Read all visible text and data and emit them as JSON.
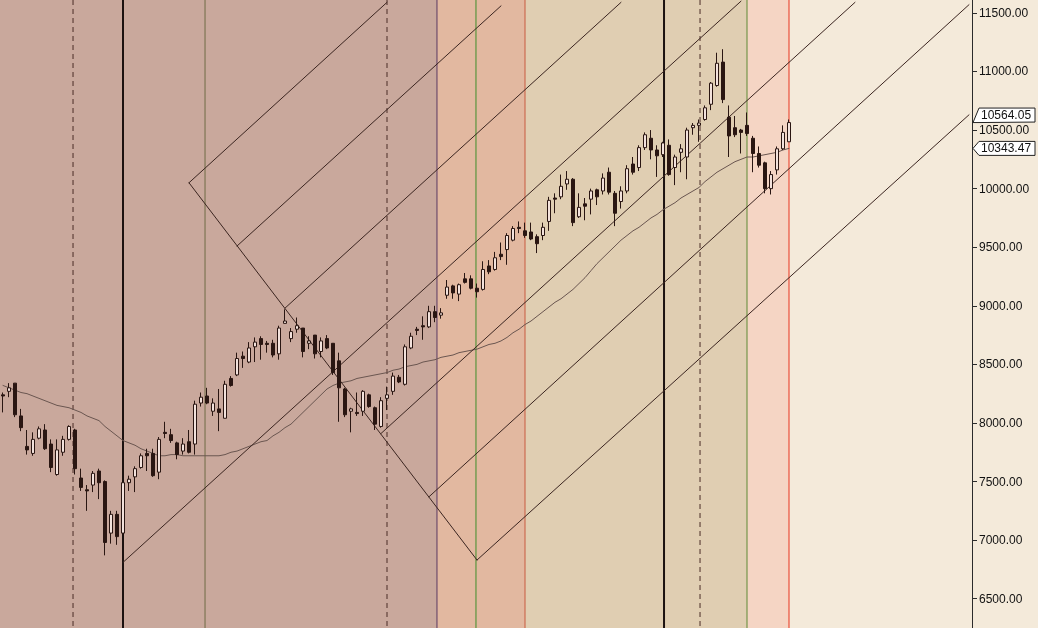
{
  "chart_data": {
    "type": "candlestick",
    "categories": [
      null,
      null,
      null,
      null,
      null,
      null,
      null,
      null,
      null,
      null,
      null,
      null,
      null,
      null,
      null,
      null,
      null,
      null,
      null,
      null,
      null,
      null,
      null,
      null,
      null,
      null,
      null,
      null,
      null,
      null,
      null,
      null,
      null,
      null,
      null,
      null,
      null,
      null,
      null,
      null,
      null,
      null,
      null,
      null,
      null,
      null,
      null,
      null,
      null,
      null,
      null,
      null,
      null,
      null,
      null,
      null,
      null,
      null,
      null,
      null,
      null,
      null,
      null,
      null,
      null,
      null,
      null,
      null,
      null,
      null,
      null,
      null,
      null,
      null,
      null,
      null,
      null,
      null,
      null,
      null,
      null,
      null,
      null,
      null,
      null,
      null,
      null,
      null,
      null,
      null,
      null,
      null,
      null,
      null,
      null,
      null,
      null,
      null,
      null,
      null,
      null,
      null,
      null,
      null,
      null,
      null,
      null,
      null,
      null,
      null,
      null,
      null,
      null,
      null,
      null,
      null,
      null,
      null,
      null,
      null,
      null,
      null,
      null,
      null,
      null,
      null,
      null,
      null,
      null,
      null,
      null,
      null,
      null,
      null,
      null,
      null,
      null,
      null,
      null,
      null,
      null,
      null,
      null,
      null,
      null,
      null,
      null,
      null,
      null,
      null,
      null,
      null,
      null,
      null,
      null,
      null,
      null,
      null,
      null,
      null,
      null,
      null
    ],
    "ohlc": [
      [
        8240,
        8260,
        8090,
        8230
      ],
      [
        8270,
        8340,
        8220,
        8300
      ],
      [
        8340,
        8340,
        8050,
        8070
      ],
      [
        8060,
        8120,
        7930,
        7960
      ],
      [
        7800,
        7940,
        7730,
        7770
      ],
      [
        7740,
        7920,
        7720,
        7860
      ],
      [
        7870,
        7970,
        7860,
        7950
      ],
      [
        7940,
        7990,
        7770,
        7780
      ],
      [
        7820,
        7860,
        7580,
        7620
      ],
      [
        7560,
        7860,
        7550,
        7770
      ],
      [
        7750,
        7890,
        7720,
        7860
      ],
      [
        7860,
        7980,
        7850,
        7970
      ],
      [
        7940,
        7950,
        7560,
        7610
      ],
      [
        7530,
        7610,
        7420,
        7450
      ],
      [
        7430,
        7470,
        7250,
        7420
      ],
      [
        7470,
        7590,
        7410,
        7570
      ],
      [
        7590,
        7610,
        7350,
        7490
      ],
      [
        7500,
        7510,
        6870,
        6980
      ],
      [
        7060,
        7250,
        6970,
        7220
      ],
      [
        7220,
        7250,
        6960,
        7030
      ],
      [
        7060,
        7490,
        7050,
        7490
      ],
      [
        7490,
        7550,
        7420,
        7520
      ],
      [
        7540,
        7630,
        7410,
        7610
      ],
      [
        7620,
        7740,
        7610,
        7720
      ],
      [
        7740,
        7780,
        7590,
        7720
      ],
      [
        7740,
        7780,
        7540,
        7550
      ],
      [
        7580,
        7880,
        7520,
        7860
      ],
      [
        7920,
        8010,
        7870,
        7910
      ],
      [
        7900,
        7950,
        7830,
        7850
      ],
      [
        7830,
        7840,
        7690,
        7730
      ],
      [
        7760,
        7870,
        7730,
        7820
      ],
      [
        7840,
        7940,
        7740,
        7750
      ],
      [
        7820,
        8190,
        7730,
        8160
      ],
      [
        8170,
        8260,
        8140,
        8220
      ],
      [
        8230,
        8300,
        8160,
        8170
      ],
      [
        8100,
        8210,
        8060,
        8170
      ],
      [
        8120,
        8290,
        7930,
        8090
      ],
      [
        8040,
        8360,
        8040,
        8330
      ],
      [
        8380,
        8400,
        8310,
        8320
      ],
      [
        8410,
        8600,
        8400,
        8550
      ],
      [
        8570,
        8610,
        8470,
        8550
      ],
      [
        8520,
        8690,
        8510,
        8640
      ],
      [
        8650,
        8730,
        8520,
        8690
      ],
      [
        8720,
        8740,
        8540,
        8670
      ],
      [
        8680,
        8700,
        8600,
        8670
      ],
      [
        8680,
        8710,
        8560,
        8580
      ],
      [
        8590,
        8830,
        8540,
        8810
      ],
      [
        8850,
        8970,
        8850,
        8870
      ],
      [
        8720,
        8810,
        8690,
        8780
      ],
      [
        8800,
        8900,
        8770,
        8830
      ],
      [
        8810,
        8810,
        8560,
        8610
      ],
      [
        8680,
        8740,
        8630,
        8700
      ],
      [
        8750,
        8750,
        8550,
        8590
      ],
      [
        8610,
        8730,
        8560,
        8700
      ],
      [
        8720,
        8750,
        8630,
        8640
      ],
      [
        8680,
        8680,
        8410,
        8430
      ],
      [
        8530,
        8600,
        8010,
        8300
      ],
      [
        8290,
        8300,
        8050,
        8070
      ],
      [
        8100,
        8130,
        7920,
        8120
      ],
      [
        8090,
        8260,
        8060,
        8080
      ],
      [
        8100,
        8280,
        8060,
        8270
      ],
      [
        8240,
        8250,
        8130,
        8140
      ],
      [
        8130,
        8140,
        7940,
        7990
      ],
      [
        7970,
        8220,
        7960,
        8190
      ],
      [
        8210,
        8310,
        8110,
        8240
      ],
      [
        8270,
        8430,
        8240,
        8400
      ],
      [
        8390,
        8410,
        8340,
        8350
      ],
      [
        8330,
        8670,
        8320,
        8650
      ],
      [
        8640,
        8770,
        8630,
        8740
      ],
      [
        8800,
        8820,
        8750,
        8790
      ],
      [
        8830,
        8910,
        8710,
        8820
      ],
      [
        8820,
        9000,
        8810,
        8950
      ],
      [
        8950,
        9000,
        8860,
        8900
      ],
      [
        8920,
        8980,
        8890,
        8940
      ],
      [
        9090,
        9220,
        9060,
        9160
      ],
      [
        9170,
        9180,
        9060,
        9110
      ],
      [
        9100,
        9190,
        9040,
        9180
      ],
      [
        9230,
        9280,
        9190,
        9200
      ],
      [
        9230,
        9260,
        9140,
        9150
      ],
      [
        9150,
        9190,
        9070,
        9120
      ],
      [
        9140,
        9380,
        9130,
        9310
      ],
      [
        9340,
        9390,
        9270,
        9290
      ],
      [
        9310,
        9460,
        9300,
        9410
      ],
      [
        9440,
        9540,
        9390,
        9420
      ],
      [
        9480,
        9620,
        9350,
        9600
      ],
      [
        9560,
        9680,
        9550,
        9660
      ],
      [
        9670,
        9720,
        9620,
        9660
      ],
      [
        9640,
        9710,
        9580,
        9600
      ],
      [
        9630,
        9710,
        9560,
        9570
      ],
      [
        9590,
        9610,
        9450,
        9530
      ],
      [
        9600,
        9710,
        9560,
        9670
      ],
      [
        9720,
        9930,
        9640,
        9900
      ],
      [
        9920,
        9960,
        9790,
        9910
      ],
      [
        9930,
        10120,
        9910,
        10020
      ],
      [
        10040,
        10150,
        9990,
        10080
      ],
      [
        10080,
        10090,
        9680,
        9710
      ],
      [
        9760,
        9960,
        9750,
        9840
      ],
      [
        9870,
        9920,
        9730,
        9850
      ],
      [
        9910,
        10000,
        9780,
        9980
      ],
      [
        9990,
        10000,
        9860,
        9930
      ],
      [
        9980,
        10130,
        9950,
        10090
      ],
      [
        10140,
        10180,
        9950,
        9970
      ],
      [
        9960,
        9980,
        9680,
        9790
      ],
      [
        9890,
        10020,
        9830,
        9980
      ],
      [
        9980,
        10200,
        9960,
        10170
      ],
      [
        10210,
        10270,
        10120,
        10140
      ],
      [
        10180,
        10370,
        10150,
        10350
      ],
      [
        10350,
        10480,
        10330,
        10460
      ],
      [
        10430,
        10500,
        10250,
        10330
      ],
      [
        10330,
        10370,
        10100,
        10280
      ],
      [
        10290,
        10400,
        10270,
        10390
      ],
      [
        10370,
        10420,
        10110,
        10120
      ],
      [
        10180,
        10290,
        10030,
        10270
      ],
      [
        10310,
        10380,
        10140,
        10340
      ],
      [
        10270,
        10520,
        10080,
        10500
      ],
      [
        10520,
        10560,
        10460,
        10540
      ],
      [
        10540,
        10590,
        10400,
        10560
      ],
      [
        10590,
        10710,
        10580,
        10690
      ],
      [
        10720,
        10910,
        10670,
        10900
      ],
      [
        10880,
        11160,
        10870,
        11070
      ],
      [
        11080,
        11190,
        10730,
        10760
      ],
      [
        10610,
        10710,
        10270,
        10450
      ],
      [
        10520,
        10620,
        10440,
        10460
      ],
      [
        10500,
        10510,
        10300,
        10480
      ],
      [
        10540,
        10650,
        10450,
        10470
      ],
      [
        10430,
        10450,
        10140,
        10300
      ],
      [
        10300,
        10360,
        10180,
        10200
      ],
      [
        10220,
        10230,
        9960,
        10000
      ],
      [
        10000,
        10150,
        9950,
        10120
      ],
      [
        10160,
        10360,
        10120,
        10340
      ],
      [
        10340,
        10540,
        10330,
        10480
      ],
      [
        10400,
        10590,
        10400,
        10564.05
      ],
      null,
      null,
      null,
      null,
      null,
      null,
      null,
      null,
      null,
      null,
      null,
      null,
      null,
      null,
      null,
      null,
      null,
      null,
      null,
      null,
      null,
      null,
      null,
      null,
      null,
      null,
      null,
      null,
      null,
      null
    ],
    "color": "#2a1612",
    "series": [
      {
        "type": "line",
        "color": "#6a5650",
        "values": [
          8320,
          8300,
          8280,
          8260,
          8250,
          8230,
          8210,
          8190,
          8170,
          8150,
          8140,
          8130,
          8110,
          8090,
          8060,
          8040,
          8020,
          7970,
          7930,
          7890,
          7850,
          7830,
          7810,
          7780,
          7760,
          7740,
          7720,
          7720,
          7730,
          7730,
          7720,
          7720,
          7720,
          7720,
          7720,
          7720,
          7720,
          7730,
          7750,
          7760,
          7780,
          7800,
          7820,
          7840,
          7850,
          7890,
          7920,
          7960,
          7990,
          8040,
          8090,
          8140,
          8190,
          8240,
          8290,
          8320,
          8340,
          8350,
          8360,
          8380,
          8390,
          8400,
          8410,
          8420,
          8430,
          8450,
          8460,
          8480,
          8490,
          8500,
          8520,
          8530,
          8540,
          8560,
          8570,
          8580,
          8600,
          8610,
          8620,
          8630,
          8650,
          8670,
          8680,
          8700,
          8730,
          8770,
          8800,
          8840,
          8870,
          8910,
          8950,
          8990,
          9030,
          9060,
          9100,
          9140,
          9190,
          9240,
          9300,
          9360,
          9410,
          9460,
          9510,
          9560,
          9600,
          9640,
          9670,
          9710,
          9750,
          9780,
          9820,
          9850,
          9880,
          9920,
          9950,
          9980,
          10010,
          10060,
          10100,
          10140,
          10170,
          10200,
          10230,
          10250,
          10270,
          10270,
          10280,
          10290,
          10300,
          10310,
          10330,
          10343.47,
          null,
          null,
          null,
          null,
          null,
          null,
          null,
          null,
          null,
          null,
          null,
          null,
          null,
          null,
          null,
          null,
          null,
          null,
          null,
          null,
          null,
          null,
          null,
          null,
          null,
          null,
          null,
          null,
          null,
          null
        ]
      },
      {
        "type": "line",
        "color": "#3b2520",
        "values": [
          null,
          null,
          null,
          null,
          null,
          null,
          null,
          null,
          null,
          null,
          null,
          null,
          null,
          null,
          null,
          null,
          null,
          null,
          null,
          null,
          null,
          null,
          null,
          null,
          null,
          null,
          null,
          null,
          null,
          null,
          null,
          10050,
          null,
          null,
          null,
          null,
          null,
          null,
          null,
          null,
          null,
          null,
          null,
          null,
          null,
          null,
          null,
          null,
          null,
          null,
          null,
          null,
          null,
          null,
          null,
          null,
          null,
          null,
          null,
          null,
          null,
          null,
          null,
          null,
          null,
          null,
          null,
          null,
          null,
          null,
          null,
          null,
          null,
          null,
          null,
          null,
          null,
          null,
          null,
          6830,
          null,
          null,
          null,
          null,
          null,
          null,
          null,
          null,
          null,
          null,
          null,
          null,
          null,
          null,
          null,
          null,
          null,
          null,
          null,
          null,
          null,
          null,
          null,
          null,
          null,
          null,
          null,
          null,
          null,
          null,
          null,
          null,
          null,
          null,
          null,
          null,
          null,
          null,
          null,
          null,
          null,
          null,
          null,
          null,
          null,
          null,
          null,
          null,
          null,
          null,
          null,
          null,
          null,
          null,
          null,
          null,
          null,
          null,
          null,
          null,
          null,
          null,
          null,
          null,
          null,
          null,
          null,
          null,
          null,
          null,
          null,
          null,
          null,
          null,
          null,
          null,
          null,
          null,
          null,
          null,
          null,
          null
        ]
      },
      {
        "type": "line",
        "color": "#3b2520",
        "values": [
          null,
          null,
          null,
          null,
          null,
          null,
          null,
          null,
          null,
          null,
          null,
          null,
          null,
          null,
          null,
          null,
          null,
          null,
          null,
          null,
          6810,
          null,
          null,
          null,
          null,
          null,
          null,
          null,
          null,
          null,
          null,
          null,
          null,
          null,
          null,
          null,
          null,
          null,
          null,
          null,
          null,
          null,
          null,
          null,
          null,
          null,
          null,
          null,
          null,
          null,
          null,
          null,
          null,
          null,
          null,
          null,
          null,
          null,
          null,
          null,
          null,
          null,
          null,
          null,
          null,
          null,
          null,
          null,
          null,
          null,
          null,
          null,
          null,
          null,
          null,
          null,
          null,
          null,
          null,
          null,
          null,
          null,
          null,
          null,
          null,
          null,
          null,
          null,
          null,
          null,
          null,
          null,
          null,
          null,
          null,
          null,
          null,
          null,
          null,
          null,
          null,
          null,
          null,
          null,
          null,
          null,
          null,
          null,
          null,
          null,
          null,
          null,
          null,
          null,
          null,
          null,
          null,
          null,
          null,
          null,
          null,
          null,
          null,
          11600,
          null,
          null,
          null,
          null,
          null,
          null,
          null,
          null,
          null,
          null,
          null,
          null,
          null,
          null,
          null,
          null,
          null,
          null,
          null,
          null,
          null,
          null,
          null,
          null,
          null,
          null,
          null,
          null,
          null,
          null,
          null,
          null,
          null,
          null,
          null,
          null,
          null,
          null
        ]
      },
      {
        "type": "line",
        "color": "#3b2520",
        "values": [
          null,
          null,
          null,
          null,
          null,
          null,
          null,
          null,
          null,
          null,
          null,
          null,
          null,
          null,
          null,
          null,
          null,
          null,
          null,
          null,
          null,
          null,
          null,
          null,
          null,
          null,
          null,
          null,
          null,
          null,
          null,
          10050,
          null,
          null,
          null,
          null,
          null,
          null,
          null,
          null,
          null,
          null,
          null,
          null,
          null,
          null,
          null,
          null,
          null,
          null,
          null,
          null,
          null,
          null,
          null,
          null,
          null,
          null,
          null,
          null,
          null,
          null,
          null,
          null,
          11590,
          null,
          null,
          null,
          null,
          null,
          null,
          null,
          null,
          null,
          null,
          null,
          null,
          null,
          null,
          null,
          null,
          null,
          null,
          null,
          null,
          null,
          null,
          null,
          null,
          null,
          null,
          null,
          null,
          null,
          null,
          null,
          null,
          null,
          null,
          null,
          null,
          null,
          null,
          null,
          null,
          null,
          null,
          null,
          null,
          null,
          null,
          null,
          null,
          null,
          null,
          null,
          null,
          null,
          null,
          null,
          null,
          null,
          null,
          null,
          null,
          null,
          null,
          null,
          null,
          null,
          null,
          null,
          null,
          null,
          null,
          null,
          null,
          null,
          null,
          null,
          null,
          null,
          null,
          null,
          null,
          null,
          null,
          null,
          null,
          null,
          null,
          null,
          null,
          null,
          null,
          null,
          null,
          null,
          null,
          null,
          null,
          null
        ]
      },
      {
        "type": "line",
        "color": "#3b2520",
        "values": [
          null,
          null,
          null,
          null,
          null,
          null,
          null,
          null,
          null,
          null,
          null,
          null,
          null,
          null,
          null,
          null,
          null,
          null,
          null,
          null,
          null,
          null,
          null,
          null,
          null,
          null,
          null,
          null,
          null,
          null,
          null,
          null,
          null,
          null,
          null,
          null,
          null,
          null,
          null,
          9510,
          null,
          null,
          null,
          null,
          null,
          null,
          null,
          null,
          null,
          null,
          null,
          null,
          null,
          null,
          null,
          null,
          null,
          null,
          null,
          null,
          null,
          null,
          null,
          null,
          null,
          null,
          null,
          null,
          null,
          null,
          null,
          null,
          null,
          null,
          null,
          null,
          null,
          null,
          null,
          null,
          null,
          null,
          null,
          11560,
          null,
          null,
          null,
          null,
          null,
          null,
          null,
          null,
          null,
          null,
          null,
          null,
          null,
          null,
          null,
          null,
          null,
          null,
          null,
          null,
          null,
          null,
          null,
          null,
          null,
          null,
          null,
          null,
          null,
          null,
          null,
          null,
          null,
          null,
          null,
          null,
          null,
          null,
          null,
          null,
          null,
          null,
          null,
          null,
          null,
          null,
          null,
          null,
          null,
          null,
          null,
          null,
          null,
          null,
          null,
          null,
          null,
          null,
          null,
          null,
          null,
          null,
          null,
          null,
          null,
          null,
          null,
          null,
          null,
          null,
          null,
          null,
          null,
          null,
          null,
          null,
          null,
          null
        ]
      },
      {
        "type": "line",
        "color": "#3b2520",
        "values": [
          null,
          null,
          null,
          null,
          null,
          null,
          null,
          null,
          null,
          null,
          null,
          null,
          null,
          null,
          null,
          null,
          null,
          null,
          null,
          null,
          null,
          null,
          null,
          null,
          null,
          null,
          null,
          null,
          null,
          null,
          null,
          null,
          null,
          null,
          null,
          null,
          null,
          null,
          null,
          null,
          null,
          null,
          null,
          null,
          null,
          null,
          null,
          8980,
          null,
          null,
          null,
          null,
          null,
          null,
          null,
          null,
          null,
          null,
          null,
          null,
          null,
          null,
          null,
          null,
          null,
          null,
          null,
          null,
          null,
          null,
          null,
          null,
          null,
          null,
          null,
          null,
          null,
          null,
          null,
          null,
          null,
          null,
          null,
          null,
          null,
          null,
          null,
          null,
          null,
          null,
          null,
          null,
          null,
          null,
          null,
          null,
          null,
          null,
          null,
          null,
          null,
          null,
          null,
          11590,
          null,
          null,
          null,
          null,
          null,
          null,
          null,
          null,
          null,
          null,
          null,
          null,
          null,
          null,
          null,
          null,
          null,
          null,
          null,
          null,
          null,
          null,
          null,
          null,
          null,
          null,
          null,
          null,
          null,
          null,
          null,
          null,
          null,
          null,
          null,
          null,
          null,
          null,
          null,
          null,
          null,
          null,
          null,
          null,
          null,
          null,
          null,
          null,
          null,
          null,
          null,
          null,
          null,
          null,
          null,
          null,
          null,
          null
        ]
      },
      {
        "type": "line",
        "color": "#3b2520",
        "values": [
          null,
          null,
          null,
          null,
          null,
          null,
          null,
          null,
          null,
          null,
          null,
          null,
          null,
          null,
          null,
          null,
          null,
          null,
          null,
          null,
          null,
          null,
          null,
          null,
          null,
          null,
          null,
          null,
          null,
          null,
          null,
          null,
          null,
          null,
          null,
          null,
          null,
          null,
          null,
          null,
          null,
          null,
          null,
          null,
          null,
          null,
          null,
          null,
          null,
          null,
          null,
          null,
          null,
          null,
          null,
          null,
          null,
          null,
          null,
          null,
          null,
          null,
          null,
          7910,
          null,
          null,
          null,
          null,
          null,
          null,
          null,
          null,
          null,
          null,
          null,
          null,
          null,
          null,
          null,
          null,
          null,
          null,
          null,
          null,
          null,
          null,
          null,
          null,
          null,
          null,
          null,
          null,
          null,
          null,
          null,
          null,
          null,
          null,
          null,
          null,
          null,
          null,
          null,
          null,
          null,
          null,
          null,
          null,
          null,
          null,
          null,
          null,
          null,
          null,
          null,
          null,
          null,
          null,
          null,
          null,
          null,
          null,
          null,
          null,
          null,
          null,
          null,
          null,
          null,
          null,
          null,
          null,
          null,
          null,
          null,
          null,
          null,
          null,
          null,
          null,
          null,
          null,
          11590,
          null,
          null,
          null,
          null,
          null,
          null,
          null,
          null,
          null,
          null,
          null,
          null,
          null,
          null,
          null,
          null,
          null,
          null,
          null
        ]
      },
      {
        "type": "line",
        "color": "#3b2520",
        "values": [
          null,
          null,
          null,
          null,
          null,
          null,
          null,
          null,
          null,
          null,
          null,
          null,
          null,
          null,
          null,
          null,
          null,
          null,
          null,
          null,
          null,
          null,
          null,
          null,
          null,
          null,
          null,
          null,
          null,
          null,
          null,
          null,
          null,
          null,
          null,
          null,
          null,
          null,
          null,
          null,
          null,
          null,
          null,
          null,
          null,
          null,
          null,
          null,
          null,
          null,
          null,
          null,
          null,
          null,
          null,
          null,
          null,
          null,
          null,
          null,
          null,
          null,
          null,
          null,
          null,
          null,
          null,
          null,
          null,
          null,
          null,
          7370,
          null,
          null,
          null,
          null,
          null,
          null,
          null,
          null,
          null,
          null,
          null,
          null,
          null,
          null,
          null,
          null,
          null,
          null,
          null,
          null,
          null,
          null,
          null,
          null,
          null,
          null,
          null,
          null,
          null,
          null,
          null,
          null,
          null,
          null,
          null,
          null,
          null,
          null,
          null,
          null,
          null,
          null,
          null,
          null,
          null,
          null,
          null,
          null,
          null,
          null,
          null,
          null,
          null,
          null,
          null,
          null,
          null,
          null,
          null,
          null,
          null,
          null,
          null,
          null,
          null,
          null,
          null,
          null,
          null,
          null,
          null,
          null,
          null,
          null,
          null,
          null,
          null,
          null,
          null,
          null,
          null,
          null,
          null,
          null,
          null,
          null,
          null,
          null,
          null,
          11570
        ]
      },
      {
        "type": "line",
        "color": "#3b2520",
        "values": [
          null,
          null,
          null,
          null,
          null,
          null,
          null,
          null,
          null,
          null,
          null,
          null,
          null,
          null,
          null,
          null,
          null,
          null,
          null,
          null,
          null,
          null,
          null,
          null,
          null,
          null,
          null,
          null,
          null,
          null,
          null,
          null,
          null,
          null,
          null,
          null,
          null,
          null,
          null,
          null,
          null,
          null,
          null,
          null,
          null,
          null,
          null,
          null,
          null,
          null,
          null,
          null,
          null,
          null,
          null,
          null,
          null,
          null,
          null,
          null,
          null,
          null,
          null,
          null,
          null,
          null,
          null,
          null,
          null,
          null,
          null,
          null,
          null,
          null,
          null,
          null,
          null,
          null,
          null,
          6830,
          null,
          null,
          null,
          null,
          null,
          null,
          null,
          null,
          null,
          null,
          null,
          null,
          null,
          null,
          null,
          null,
          null,
          null,
          null,
          null,
          null,
          null,
          null,
          null,
          null,
          null,
          null,
          null,
          null,
          null,
          null,
          null,
          null,
          null,
          null,
          null,
          null,
          null,
          null,
          null,
          null,
          null,
          null,
          null,
          null,
          null,
          null,
          null,
          null,
          null,
          null,
          null,
          null,
          null,
          null,
          null,
          null,
          null,
          null,
          null,
          null,
          null,
          null,
          null,
          null,
          null,
          null,
          null,
          null,
          null,
          null,
          null,
          null,
          null,
          null,
          null,
          null,
          null,
          null,
          null,
          null,
          10630
        ]
      }
    ],
    "ylim": [
      6250,
      11610
    ],
    "yticks": [
      {
        "value": 6500,
        "label": "6500.00"
      },
      {
        "value": 7000,
        "label": "7000.00"
      },
      {
        "value": 7500,
        "label": "7500.00"
      },
      {
        "value": 8000,
        "label": "8000.00"
      },
      {
        "value": 8500,
        "label": "8500.00"
      },
      {
        "value": 9000,
        "label": "9000.00"
      },
      {
        "value": 9500,
        "label": "9500.00"
      },
      {
        "value": 10000,
        "label": "10000.00"
      },
      {
        "value": 10500,
        "label": "10500.00"
      },
      {
        "value": 11000,
        "label": "11000.00"
      },
      {
        "value": 11500,
        "label": "11500.00"
      }
    ],
    "tick_labels": "y",
    "annotations": [
      "10564.05",
      "10343.47"
    ]
  }
}
